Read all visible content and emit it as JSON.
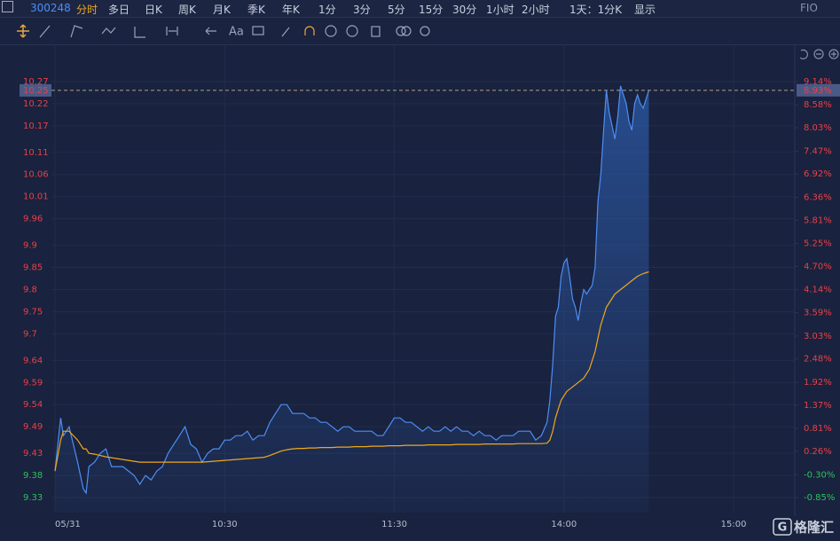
{
  "toolbar": {
    "code": "300248",
    "tabs": [
      "分时",
      "多日",
      "日K",
      "周K",
      "月K",
      "季K",
      "年K",
      "1分",
      "3分",
      "5分",
      "15分",
      "30分",
      "1小时",
      "2小时"
    ],
    "range": "1天：1分K",
    "display": "显示",
    "fio": "FIO"
  },
  "toolbar2": {
    "text_tool": "Aa"
  },
  "watermark": "格隆汇",
  "chart_data": {
    "type": "line",
    "x": [
      0,
      2,
      3,
      5,
      8,
      10,
      11,
      12,
      14,
      16,
      18,
      20,
      22,
      24,
      26,
      28,
      30,
      32,
      34,
      36,
      38,
      40,
      42,
      44,
      46,
      48,
      50,
      52,
      54,
      56,
      58,
      60,
      62,
      64,
      66,
      68,
      70,
      72,
      74,
      76,
      78,
      80,
      82,
      84,
      86,
      88,
      90,
      92,
      94,
      96,
      98,
      100,
      102,
      104,
      106,
      108,
      110,
      112,
      114,
      116,
      118,
      120,
      122,
      124,
      126,
      128,
      130,
      132,
      134,
      136,
      138,
      140,
      142,
      144,
      146,
      148,
      150,
      152,
      154,
      156,
      158,
      160,
      162,
      164,
      166,
      168,
      170,
      172,
      174,
      175,
      176,
      177,
      178,
      179,
      180,
      181,
      182,
      183,
      184,
      185,
      186,
      187,
      188,
      189,
      190,
      191,
      192,
      193,
      194,
      195,
      196,
      197,
      198,
      199,
      200,
      201,
      202,
      203,
      204,
      205,
      206,
      207,
      208,
      209,
      210
    ],
    "series": [
      {
        "color": "#4d8ef4",
        "values": [
          9.39,
          9.51,
          9.47,
          9.49,
          9.41,
          9.35,
          9.34,
          9.4,
          9.41,
          9.43,
          9.44,
          9.4,
          9.4,
          9.4,
          9.39,
          9.38,
          9.36,
          9.38,
          9.37,
          9.39,
          9.4,
          9.43,
          9.45,
          9.47,
          9.49,
          9.45,
          9.44,
          9.41,
          9.43,
          9.44,
          9.44,
          9.46,
          9.46,
          9.47,
          9.47,
          9.48,
          9.46,
          9.47,
          9.47,
          9.5,
          9.52,
          9.54,
          9.54,
          9.52,
          9.52,
          9.52,
          9.51,
          9.51,
          9.5,
          9.5,
          9.49,
          9.48,
          9.49,
          9.49,
          9.48,
          9.48,
          9.48,
          9.48,
          9.47,
          9.47,
          9.49,
          9.51,
          9.51,
          9.5,
          9.5,
          9.49,
          9.48,
          9.49,
          9.48,
          9.48,
          9.49,
          9.48,
          9.49,
          9.48,
          9.48,
          9.47,
          9.48,
          9.47,
          9.47,
          9.46,
          9.47,
          9.47,
          9.47,
          9.48,
          9.48,
          9.48,
          9.46,
          9.47,
          9.5,
          9.55,
          9.63,
          9.74,
          9.76,
          9.83,
          9.86,
          9.87,
          9.83,
          9.78,
          9.76,
          9.73,
          9.77,
          9.8,
          9.79,
          9.8,
          9.81,
          9.85,
          10.0,
          10.06,
          10.16,
          10.25,
          10.2,
          10.17,
          10.14,
          10.19,
          10.26,
          10.24,
          10.22,
          10.18,
          10.16,
          10.22,
          10.24,
          10.22,
          10.21,
          10.23,
          10.25
        ]
      },
      {
        "color": "#f0a81a",
        "values": [
          9.39,
          9.46,
          9.48,
          9.48,
          9.46,
          9.44,
          9.44,
          9.43,
          9.428,
          9.425,
          9.422,
          9.42,
          9.418,
          9.416,
          9.414,
          9.412,
          9.41,
          9.41,
          9.41,
          9.41,
          9.41,
          9.41,
          9.41,
          9.41,
          9.41,
          9.41,
          9.41,
          9.41,
          9.411,
          9.412,
          9.413,
          9.414,
          9.415,
          9.416,
          9.417,
          9.418,
          9.419,
          9.42,
          9.421,
          9.425,
          9.43,
          9.435,
          9.438,
          9.44,
          9.441,
          9.441,
          9.442,
          9.442,
          9.443,
          9.443,
          9.443,
          9.444,
          9.444,
          9.444,
          9.445,
          9.445,
          9.445,
          9.446,
          9.446,
          9.446,
          9.447,
          9.447,
          9.447,
          9.448,
          9.448,
          9.448,
          9.448,
          9.449,
          9.449,
          9.449,
          9.449,
          9.449,
          9.45,
          9.45,
          9.45,
          9.45,
          9.45,
          9.451,
          9.451,
          9.451,
          9.451,
          9.451,
          9.451,
          9.452,
          9.452,
          9.452,
          9.452,
          9.452,
          9.453,
          9.46,
          9.48,
          9.51,
          9.53,
          9.55,
          9.56,
          9.57,
          9.575,
          9.58,
          9.585,
          9.59,
          9.595,
          9.6,
          9.61,
          9.62,
          9.64,
          9.66,
          9.69,
          9.72,
          9.74,
          9.76,
          9.77,
          9.78,
          9.79,
          9.795,
          9.8,
          9.805,
          9.81,
          9.815,
          9.82,
          9.825,
          9.83,
          9.833,
          9.836,
          9.838,
          9.84
        ]
      }
    ],
    "xlim": [
      -1.25,
      261.3
    ],
    "xticks": [
      {
        "value": 0,
        "label": "05/31"
      },
      {
        "value": 60,
        "label": "10:30"
      },
      {
        "value": 120,
        "label": "11:30"
      },
      {
        "value": 180,
        "label": "14:00"
      },
      {
        "value": 240,
        "label": "15:00"
      }
    ],
    "ylim": [
      9.296,
      10.334
    ],
    "yticks": [
      10.27,
      10.22,
      10.17,
      10.11,
      10.06,
      10.01,
      9.96,
      9.9,
      9.85,
      9.8,
      9.75,
      9.7,
      9.64,
      9.59,
      9.54,
      9.49,
      9.43,
      9.38,
      9.33
    ],
    "y2lim": [
      -1.21,
      9.82
    ],
    "y2ticks": [
      {
        "value": 9.14,
        "label": "9.14%"
      },
      {
        "value": 8.58,
        "label": "8.58%"
      },
      {
        "value": 8.03,
        "label": "8.03%"
      },
      {
        "value": 7.47,
        "label": "7.47%"
      },
      {
        "value": 6.92,
        "label": "6.92%"
      },
      {
        "value": 6.36,
        "label": "6.36%"
      },
      {
        "value": 5.81,
        "label": "5.81%"
      },
      {
        "value": 5.25,
        "label": "5.25%"
      },
      {
        "value": 4.7,
        "label": "4.70%"
      },
      {
        "value": 4.14,
        "label": "4.14%"
      },
      {
        "value": 3.59,
        "label": "3.59%"
      },
      {
        "value": 3.03,
        "label": "3.03%"
      },
      {
        "value": 2.48,
        "label": "2.48%"
      },
      {
        "value": 1.92,
        "label": "1.92%"
      },
      {
        "value": 1.37,
        "label": "1.37%"
      },
      {
        "value": 0.81,
        "label": "0.81%"
      },
      {
        "value": 0.26,
        "label": "0.26%"
      },
      {
        "value": -0.3,
        "label": "-0.30%"
      },
      {
        "value": -0.85,
        "label": "-0.85%"
      }
    ],
    "last_price": 10.25,
    "last_change": {
      "value": 8.93,
      "label": "8.93%"
    },
    "grid": true,
    "up_color": "#e8414a",
    "down_color": "#2fc25b"
  }
}
